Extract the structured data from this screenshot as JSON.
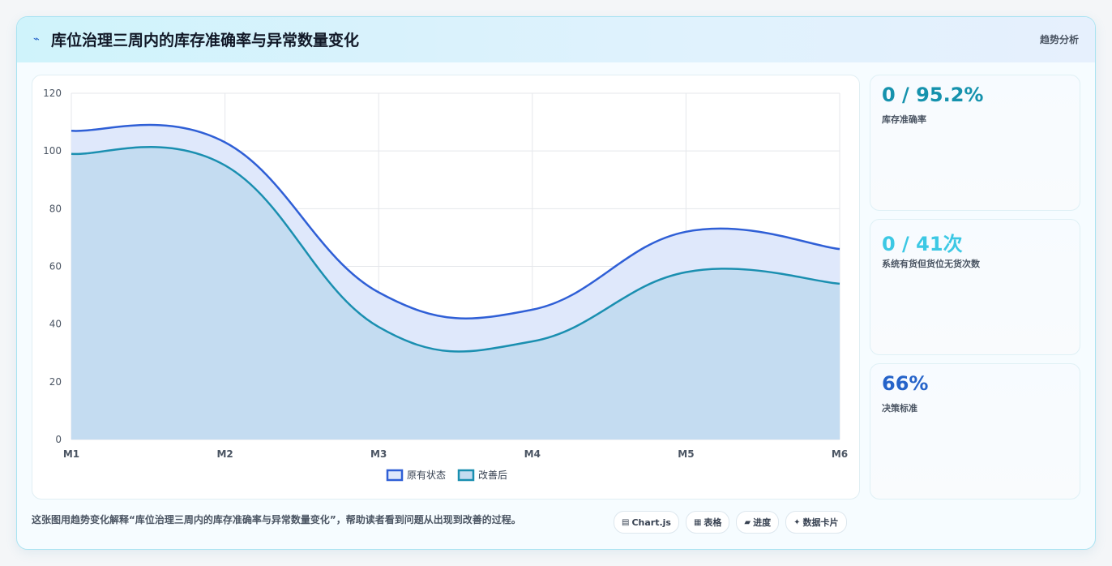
{
  "header": {
    "icon": "bolt-icon",
    "title": "库位治理三周内的库存准确率与异常数量变化",
    "tag": "趋势分析"
  },
  "stats": [
    {
      "value": "0 / 95.2%",
      "label": "库存准确率",
      "color": "#1592ad"
    },
    {
      "value": "0 / 41次",
      "label": "系统有货但货位无货次数",
      "color": "#3cc8e4"
    },
    {
      "value": "66%",
      "label": "决策标准",
      "color": "#2563c9"
    }
  ],
  "caption": "这张图用趋势变化解释“库位治理三周内的库存准确率与异常数量变化”，帮助读者看到问题从出现到改善的过程。",
  "chips": [
    {
      "icon": "chart-icon",
      "glyph": "▤",
      "label": "Chart.js"
    },
    {
      "icon": "table-icon",
      "glyph": "▦",
      "label": "表格"
    },
    {
      "icon": "progress-icon",
      "glyph": "▰",
      "label": "进度"
    },
    {
      "icon": "sparkle-icon",
      "glyph": "✦",
      "label": "数据卡片"
    }
  ],
  "chart_data": {
    "type": "area",
    "categories": [
      "M1",
      "M2",
      "M3",
      "M4",
      "M5",
      "M6"
    ],
    "ylim": [
      0,
      120
    ],
    "yticks": [
      0,
      20,
      40,
      60,
      80,
      100,
      120
    ],
    "grid": true,
    "legend_position": "bottom",
    "series": [
      {
        "name": "原有状态",
        "values": [
          107,
          103,
          51,
          45,
          72,
          66
        ],
        "color": "#2f5fd6",
        "fill": "#dfe8fb"
      },
      {
        "name": "改善后",
        "values": [
          99,
          95,
          39,
          34,
          58,
          54
        ],
        "color": "#1a8fb0",
        "fill": "#c4dcf1"
      }
    ]
  }
}
